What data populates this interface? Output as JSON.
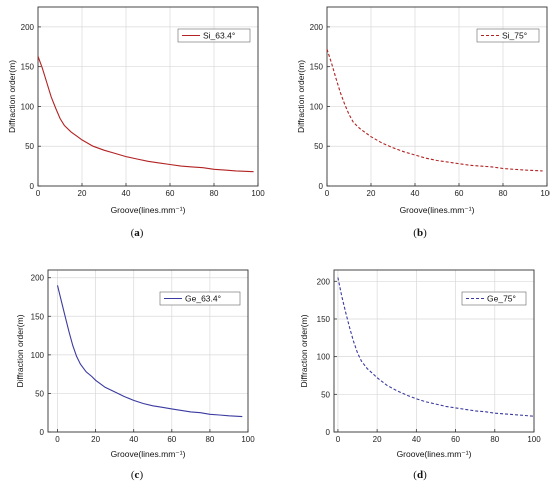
{
  "figure": {
    "panels": [
      {
        "caption_letter": "a",
        "xlabel": "Groove(lines.mm⁻¹)",
        "ylabel": "Diffraction order(m)"
      },
      {
        "caption_letter": "b",
        "xlabel": "Groove(lines.mm⁻¹)",
        "ylabel": "Diffraction order(m)"
      },
      {
        "caption_letter": "c",
        "xlabel": "Groove(lines.mm⁻¹)",
        "ylabel": "Diffraction order(m)"
      },
      {
        "caption_letter": "d",
        "xlabel": "Groove(lines.mm⁻¹)",
        "ylabel": "Diffraction order(m)"
      }
    ]
  },
  "chart_data": [
    {
      "type": "line",
      "xlabel": "Groove(lines.mm⁻¹)",
      "ylabel": "Diffraction order(m)",
      "xlim": [
        0,
        100
      ],
      "ylim": [
        0,
        225
      ],
      "xticks": [
        0,
        20,
        40,
        60,
        80,
        100
      ],
      "yticks": [
        0,
        50,
        100,
        150,
        200
      ],
      "grid": true,
      "legend_position": "top-right",
      "series": [
        {
          "name": "Si_63.4°",
          "color": "#b22222",
          "style": "solid",
          "x": [
            0,
            2,
            4,
            6,
            8,
            10,
            12,
            15,
            18,
            20,
            25,
            30,
            35,
            40,
            45,
            50,
            55,
            60,
            65,
            70,
            75,
            80,
            85,
            90,
            98
          ],
          "y": [
            163,
            148,
            130,
            112,
            98,
            85,
            76,
            68,
            62,
            58,
            50,
            45,
            41,
            37,
            34,
            31,
            29,
            27,
            25,
            24,
            23,
            21,
            20,
            19,
            18
          ]
        }
      ]
    },
    {
      "type": "line",
      "xlabel": "Groove(lines.mm⁻¹)",
      "ylabel": "Diffraction order(m)",
      "xlim": [
        0,
        100
      ],
      "ylim": [
        0,
        225
      ],
      "xticks": [
        0,
        20,
        40,
        60,
        80,
        100
      ],
      "yticks": [
        0,
        50,
        100,
        150,
        200
      ],
      "grid": true,
      "legend_position": "top-right",
      "series": [
        {
          "name": "Si_75°",
          "color": "#b22222",
          "style": "dashed",
          "x": [
            0,
            2,
            4,
            6,
            8,
            10,
            12,
            15,
            18,
            20,
            25,
            30,
            35,
            40,
            45,
            50,
            55,
            60,
            65,
            70,
            75,
            80,
            85,
            90,
            98
          ],
          "y": [
            172,
            155,
            136,
            118,
            103,
            90,
            80,
            72,
            66,
            62,
            54,
            48,
            43,
            39,
            35,
            32,
            30,
            28,
            26,
            25,
            24,
            22,
            21,
            20,
            19
          ]
        }
      ]
    },
    {
      "type": "line",
      "xlabel": "Groove(lines.mm⁻¹)",
      "ylabel": "Diffraction order(m)",
      "xlim": [
        -5,
        100
      ],
      "ylim": [
        0,
        210
      ],
      "xticks": [
        0,
        20,
        40,
        60,
        80,
        100
      ],
      "yticks": [
        0,
        50,
        100,
        150,
        200
      ],
      "grid": true,
      "legend_position": "top-right",
      "series": [
        {
          "name": "Ge_63.4°",
          "color": "#3a3aa0",
          "style": "solid",
          "x": [
            0,
            2,
            4,
            6,
            8,
            10,
            12,
            15,
            18,
            20,
            25,
            30,
            35,
            40,
            45,
            50,
            55,
            60,
            65,
            70,
            75,
            80,
            85,
            90,
            97
          ],
          "y": [
            190,
            170,
            150,
            130,
            112,
            98,
            88,
            78,
            72,
            67,
            58,
            52,
            46,
            41,
            37,
            34,
            32,
            30,
            28,
            26,
            25,
            23,
            22,
            21,
            20
          ]
        }
      ]
    },
    {
      "type": "line",
      "xlabel": "Groove(lines.mm⁻¹)",
      "ylabel": "Diffraction order(m)",
      "xlim": [
        -2,
        100
      ],
      "ylim": [
        0,
        215
      ],
      "xticks": [
        0,
        20,
        40,
        60,
        80,
        100
      ],
      "yticks": [
        0,
        50,
        100,
        150,
        200
      ],
      "grid": true,
      "legend_position": "top-right",
      "series": [
        {
          "name": "Ge_75°",
          "color": "#3a3aa0",
          "style": "dashed",
          "x": [
            0,
            2,
            4,
            6,
            8,
            10,
            12,
            15,
            18,
            20,
            25,
            30,
            35,
            40,
            45,
            50,
            55,
            60,
            65,
            70,
            75,
            80,
            85,
            90,
            100
          ],
          "y": [
            205,
            180,
            158,
            138,
            120,
            105,
            94,
            84,
            77,
            72,
            62,
            55,
            49,
            44,
            40,
            37,
            34,
            32,
            30,
            28,
            27,
            25,
            24,
            23,
            21
          ]
        }
      ]
    }
  ]
}
